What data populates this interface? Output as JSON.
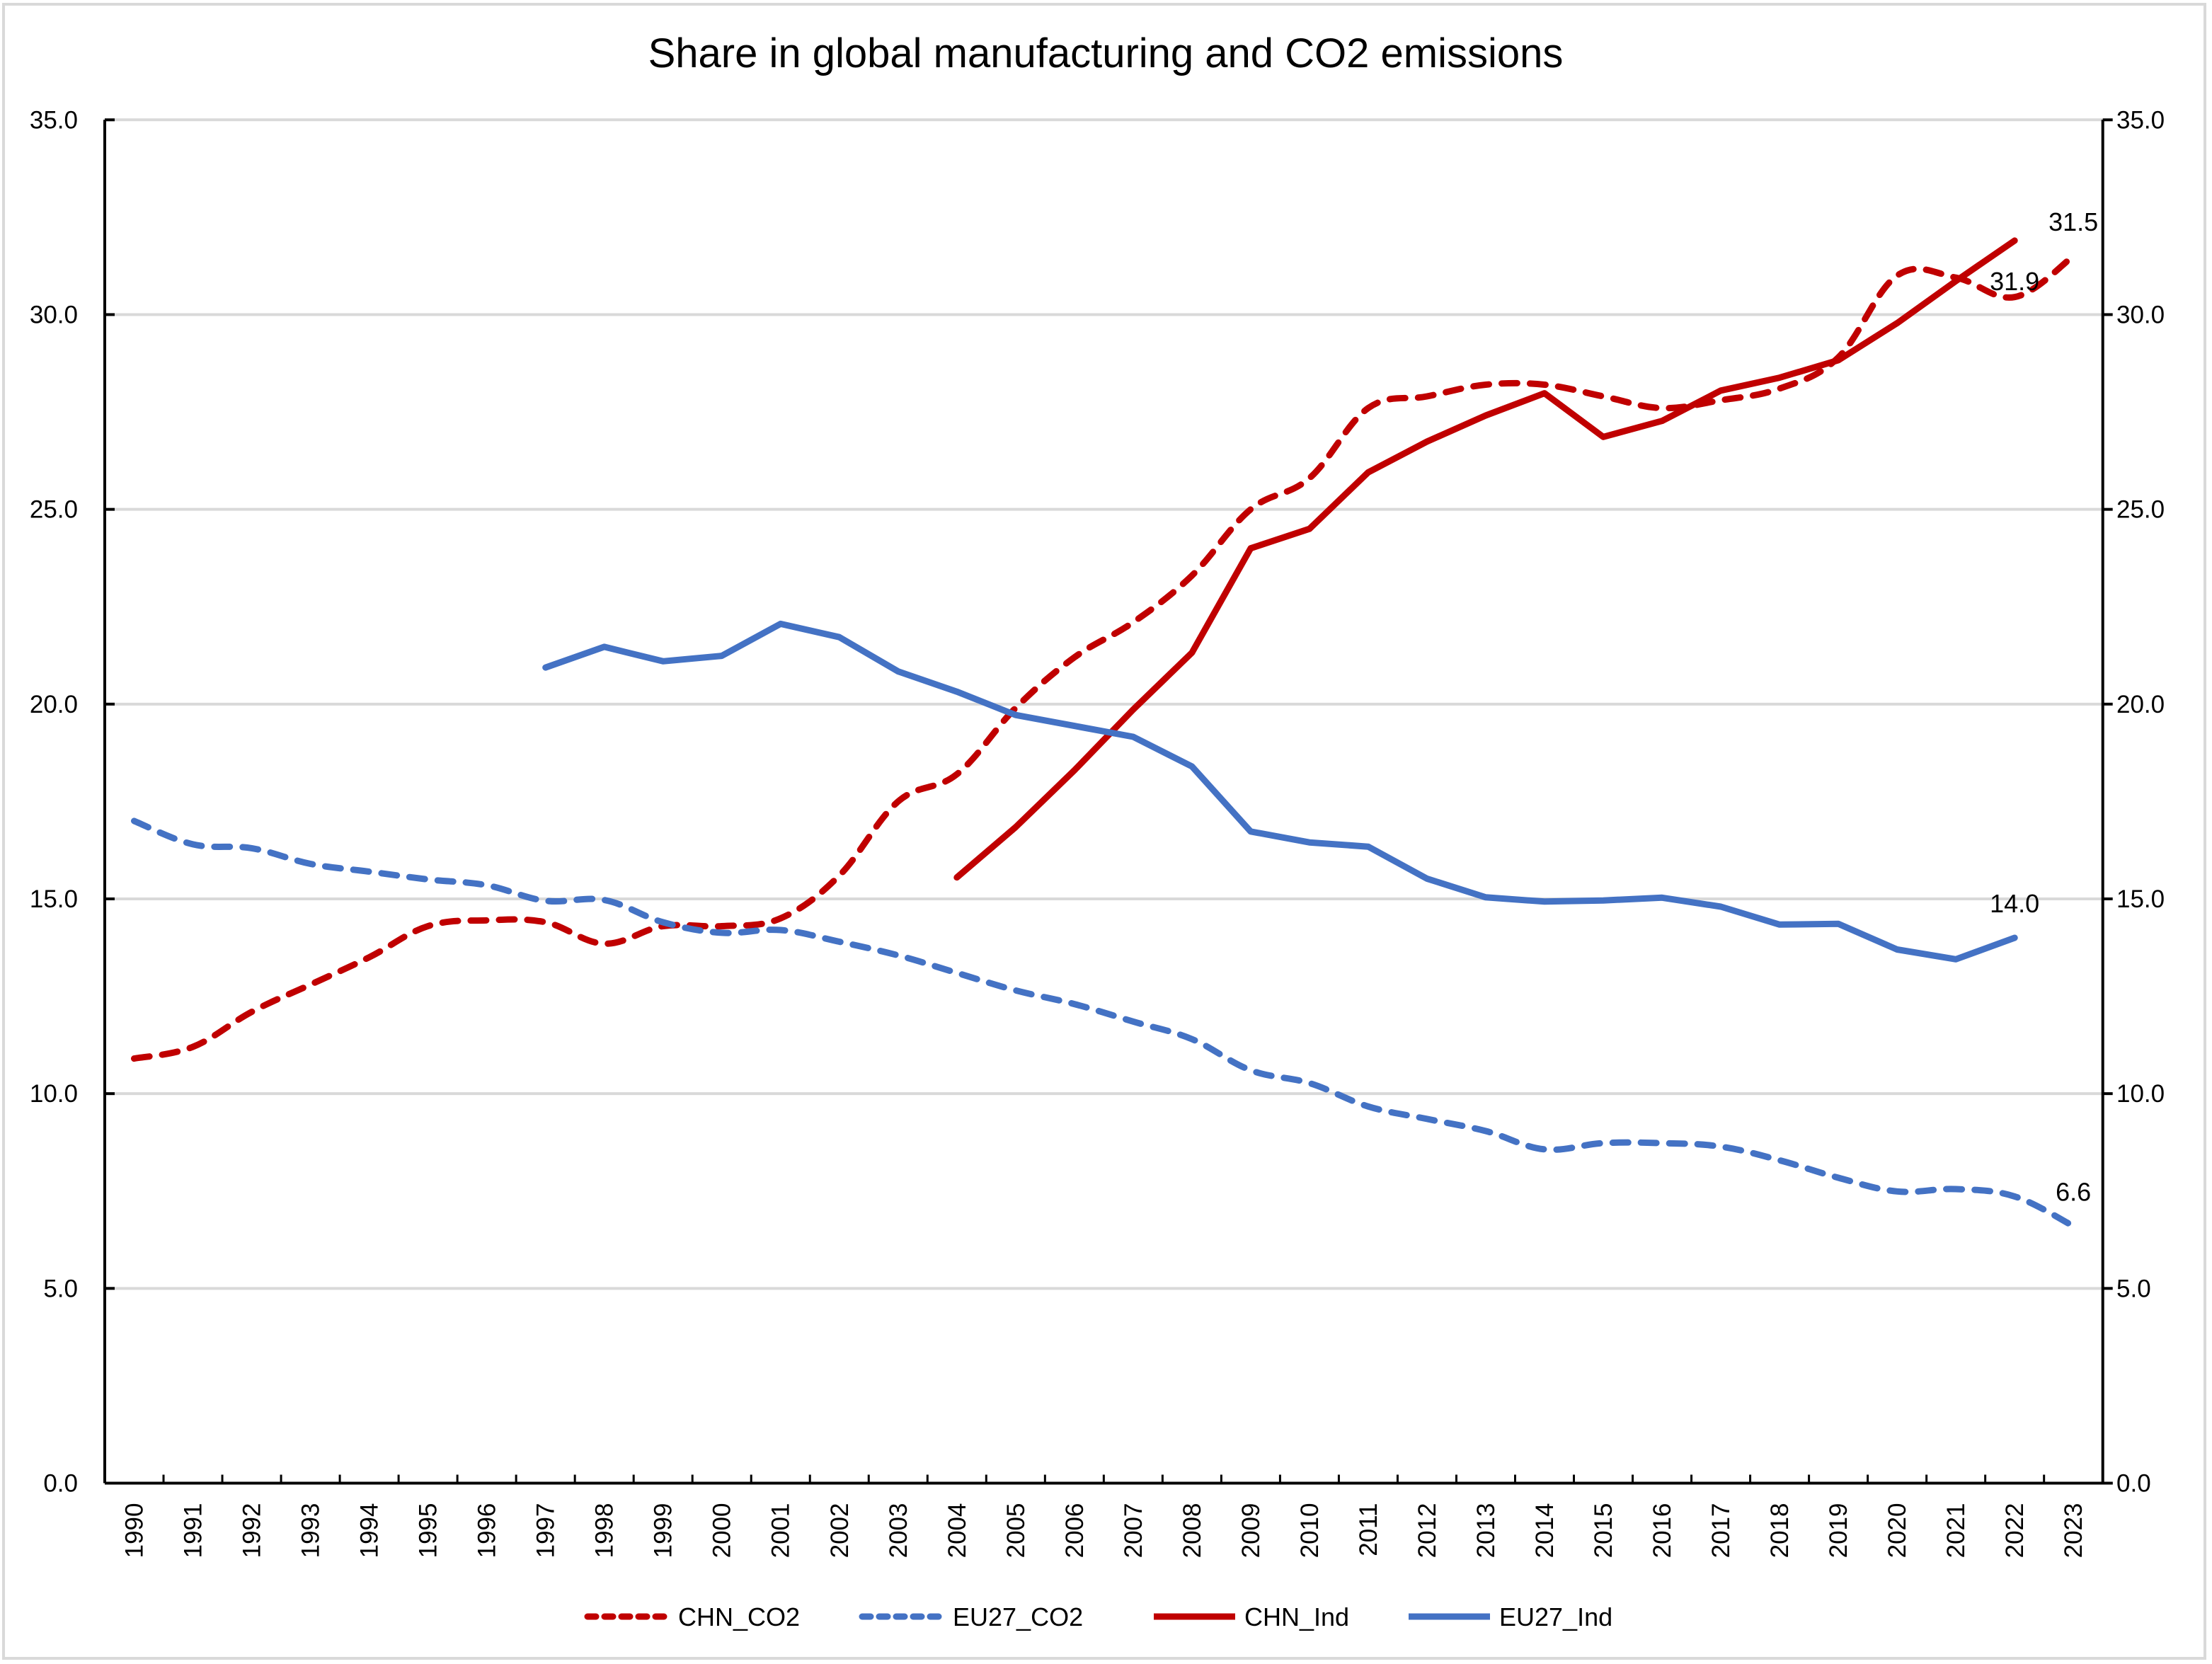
{
  "chart_data": {
    "type": "line",
    "title": "Share in global manufacturing and CO2 emissions",
    "xlabel": "",
    "ylabel": "",
    "ylabel_right": "",
    "ylim": [
      0,
      35
    ],
    "ylim_right": [
      0,
      35
    ],
    "y_ticks": [
      "0.0",
      "5.0",
      "10.0",
      "15.0",
      "20.0",
      "25.0",
      "30.0",
      "35.0"
    ],
    "y_tick_values": [
      0,
      5,
      10,
      15,
      20,
      25,
      30,
      35
    ],
    "grid": true,
    "legend_position": "bottom",
    "categories": [
      "1990",
      "1991",
      "1992",
      "1993",
      "1994",
      "1995",
      "1996",
      "1997",
      "1998",
      "1999",
      "2000",
      "2001",
      "2002",
      "2003",
      "2004",
      "2005",
      "2006",
      "2007",
      "2008",
      "2009",
      "2010",
      "2011",
      "2012",
      "2013",
      "2014",
      "2015",
      "2016",
      "2017",
      "2018",
      "2019",
      "2020",
      "2021",
      "2022",
      "2023"
    ],
    "series": [
      {
        "name": "CHN_CO2",
        "color": "#c00000",
        "style": "dashed",
        "values": [
          10.9,
          11.2,
          12.1,
          12.8,
          13.5,
          14.3,
          14.45,
          14.4,
          13.85,
          14.3,
          14.3,
          14.5,
          15.6,
          17.5,
          18.2,
          19.9,
          21.2,
          22.1,
          23.3,
          25.0,
          25.8,
          27.6,
          27.9,
          28.2,
          28.2,
          27.9,
          27.6,
          27.8,
          28.1,
          28.9,
          31.0,
          30.95,
          30.45,
          31.5
        ],
        "labels": {
          "2023": "31.5"
        }
      },
      {
        "name": "EU27_CO2",
        "color": "#4472c4",
        "style": "dashed",
        "values": [
          17.0,
          16.4,
          16.3,
          15.9,
          15.7,
          15.5,
          15.35,
          14.95,
          14.97,
          14.4,
          14.13,
          14.2,
          13.9,
          13.55,
          13.1,
          12.65,
          12.3,
          11.85,
          11.4,
          10.6,
          10.27,
          9.67,
          9.35,
          9.04,
          8.57,
          8.73,
          8.73,
          8.64,
          8.29,
          7.84,
          7.49,
          7.55,
          7.36,
          6.6
        ],
        "labels": {
          "2023": "6.6"
        }
      },
      {
        "name": "CHN_Ind",
        "color": "#c00000",
        "style": "solid",
        "values": [
          null,
          null,
          null,
          null,
          null,
          null,
          null,
          null,
          null,
          null,
          null,
          null,
          null,
          null,
          15.55,
          16.84,
          18.3,
          19.86,
          21.32,
          24.0,
          24.5,
          25.95,
          26.74,
          27.41,
          27.98,
          26.86,
          27.27,
          28.05,
          28.38,
          28.83,
          29.78,
          30.86,
          31.9,
          null
        ],
        "labels": {
          "2022": "31.9"
        }
      },
      {
        "name": "EU27_Ind",
        "color": "#4472c4",
        "style": "solid",
        "values": [
          null,
          null,
          null,
          null,
          null,
          null,
          null,
          20.94,
          21.47,
          21.1,
          21.24,
          22.06,
          21.72,
          20.84,
          20.32,
          19.72,
          19.44,
          19.16,
          18.4,
          16.73,
          16.45,
          16.34,
          15.52,
          15.04,
          14.93,
          14.96,
          15.03,
          14.8,
          14.34,
          14.36,
          13.7,
          13.45,
          14.0,
          null
        ],
        "labels": {
          "2022": "14.0"
        }
      }
    ]
  }
}
